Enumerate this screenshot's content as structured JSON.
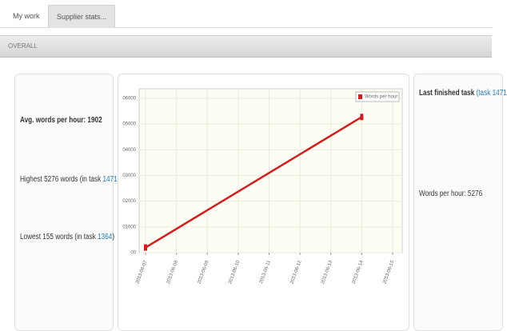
{
  "tabs": [
    "My work",
    "Supplier stats..."
  ],
  "section": "OVERALL",
  "left": {
    "avg": "Avg. words per hour: 1902",
    "highest": {
      "text": "Highest 5276 words (in task ",
      "task": "1471",
      "close": ")"
    },
    "lowest": {
      "text": "Lowest 155 words (in task ",
      "task": "1364",
      "close": ")"
    }
  },
  "right": {
    "title": "Last finished task",
    "task": "(task 1471",
    "words": "Words per hour: 5276"
  },
  "chart_data": {
    "type": "line",
    "x": [
      "2013-06-07",
      "2013-06-14"
    ],
    "series": [
      {
        "name": "Words per hour",
        "color": "#cc2020",
        "values": [
          200,
          5276
        ]
      }
    ],
    "xlim": [
      "2013-06-07",
      "2013-06-15"
    ],
    "xticks": [
      "2013-06-07",
      "2013-06-08",
      "2013-06-09",
      "2013-06-10",
      "2013-06-11",
      "2013-06-12",
      "2013-06-13",
      "2013-06-14",
      "2013-06-15"
    ],
    "ylim": [
      0,
      6000
    ],
    "yticks": [
      {
        "value": 0,
        "label": "00"
      },
      {
        "value": 1000,
        "label": "01000"
      },
      {
        "value": 2000,
        "label": "02000"
      },
      {
        "value": 3000,
        "label": "03000"
      },
      {
        "value": 4000,
        "label": "04000"
      },
      {
        "value": 5000,
        "label": "05000"
      },
      {
        "value": 6000,
        "label": "06000"
      }
    ],
    "grid": true,
    "legend": "top-right"
  }
}
